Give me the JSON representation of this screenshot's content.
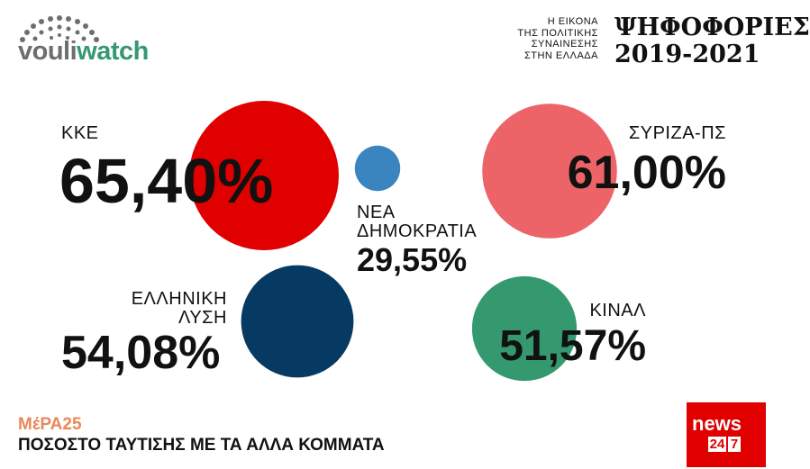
{
  "logo": {
    "part1": "vouli",
    "part2": "watch"
  },
  "news_logo": {
    "name": "news",
    "num1": "24",
    "num2": "7"
  },
  "chart_data": {
    "type": "bubble",
    "subtitle": "Η ΕΙΚΟΝΑ\nΤΗΣ ΠΟΛΙΤΙΚΗΣ\nΣΥΝΑΙΝΕΣΗΣ\nΣΤΗΝ ΕΛΛΑΔΑ",
    "title": "ΨΗΦΟΦΟΡΙΕΣ\n2019-2021",
    "party": "ΜέΡΑ25",
    "caption": "ΠΟΣΟΣΤΟ ΤΑΥΤΙΣΗΣ ΜΕ ΤΑ ΑΛΛΑ ΚΟΜΜΑΤΑ",
    "categories": [
      "ΚΚΕ",
      "ΝΕΑ\nΔΗΜΟΚΡΑΤΙΑ",
      "ΣΥΡΙΖΑ-ΠΣ",
      "ΕΛΛΗΝΙΚΗ\nΛΥΣΗ",
      "ΚΙΝΑΛ"
    ],
    "values": [
      65.4,
      29.55,
      61,
      54.08,
      51.57
    ],
    "value_labels": [
      "65,40%",
      "29,55%",
      "61,00%",
      "54,08%",
      "51,57%"
    ],
    "colors": [
      "#e00000",
      "#3a85c0",
      "#ec6468",
      "#063a63",
      "#34996f"
    ]
  }
}
